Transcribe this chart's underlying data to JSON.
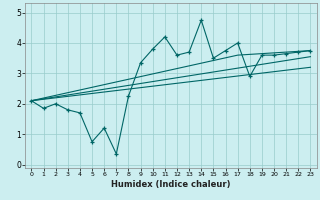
{
  "title": "",
  "xlabel": "Humidex (Indice chaleur)",
  "ylabel": "",
  "bg_color": "#cceef0",
  "line_color": "#006666",
  "grid_color": "#99cccc",
  "xlim": [
    -0.5,
    23.5
  ],
  "ylim": [
    -0.1,
    5.3
  ],
  "yticks": [
    0,
    1,
    2,
    3,
    4,
    5
  ],
  "xticks": [
    0,
    1,
    2,
    3,
    4,
    5,
    6,
    7,
    8,
    9,
    10,
    11,
    12,
    13,
    14,
    15,
    16,
    17,
    18,
    19,
    20,
    21,
    22,
    23
  ],
  "series_zigzag": {
    "x": [
      0,
      1,
      2,
      3,
      4,
      5,
      6,
      7,
      8,
      9,
      10,
      11,
      12,
      13,
      14,
      15,
      16,
      17,
      18,
      19,
      20,
      21,
      22,
      23
    ],
    "y": [
      2.1,
      1.85,
      2.0,
      1.8,
      1.7,
      0.75,
      1.2,
      0.35,
      2.25,
      3.35,
      3.8,
      4.2,
      3.6,
      3.7,
      4.75,
      3.5,
      3.75,
      4.0,
      2.9,
      3.6,
      3.6,
      3.65,
      3.7,
      3.75
    ]
  },
  "series_straight": [
    {
      "x": [
        0,
        17,
        23
      ],
      "y": [
        2.1,
        3.6,
        3.75
      ]
    },
    {
      "x": [
        0,
        23
      ],
      "y": [
        2.1,
        3.55
      ]
    },
    {
      "x": [
        0,
        23
      ],
      "y": [
        2.1,
        3.2
      ]
    }
  ]
}
